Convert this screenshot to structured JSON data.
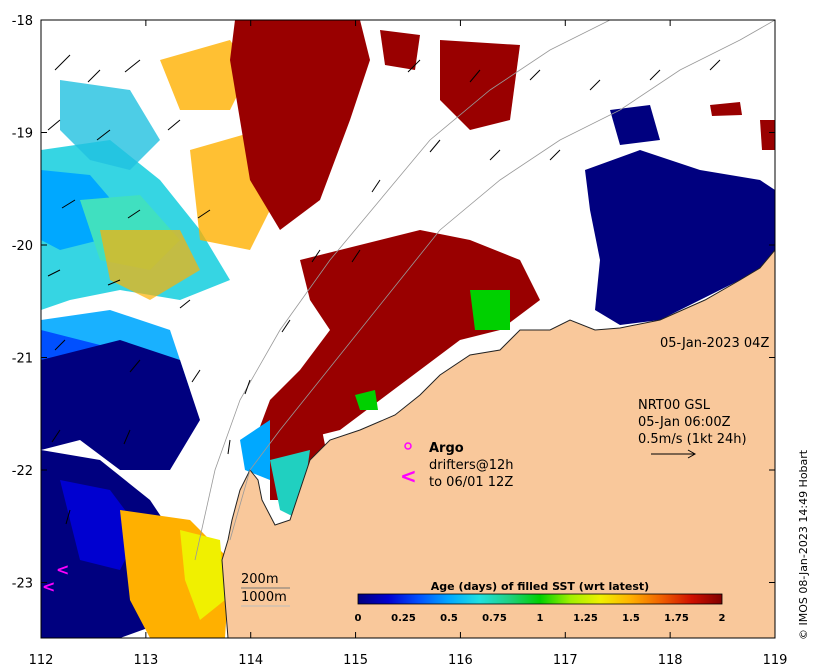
{
  "map": {
    "x_ticks": [
      "112",
      "113",
      "114",
      "115",
      "116",
      "117",
      "118",
      "119"
    ],
    "y_ticks": [
      "-18",
      "-19",
      "-20",
      "-21",
      "-22",
      "-23"
    ],
    "land_color": "#f9c89b",
    "no_data_color": "#ffffff"
  },
  "annotations": {
    "sst_time": "05-Jan-2023 04Z",
    "current_product": "NRT00 GSL",
    "current_time": "05-Jan 06:00Z",
    "current_scale": "0.5m/s (1kt 24h)",
    "argo_label": "Argo",
    "drifters_line1": "drifters@12h",
    "drifters_line2": "to 06/01 12Z",
    "isobath_200": "200m",
    "isobath_1000": "1000m",
    "credit": "© IMOS 08-Jan-2023 14:49 Hobart"
  },
  "colorbar": {
    "title": "Age (days) of filled SST (wrt latest)",
    "ticks": [
      "0",
      "0.25",
      "0.5",
      "0.75",
      "1",
      "1.25",
      "1.5",
      "1.75",
      "2"
    ],
    "range": [
      0,
      2
    ],
    "colors": [
      "#00007f",
      "#0000d0",
      "#0050ff",
      "#00a8ff",
      "#20e0e0",
      "#20d080",
      "#00d000",
      "#a0f000",
      "#f0f000",
      "#ffb000",
      "#f06000",
      "#d01000",
      "#800000"
    ]
  },
  "icons": {
    "argo": "argo-circle-icon",
    "drifter": "drifter-chevron-icon",
    "current": "current-arrow-icon"
  }
}
